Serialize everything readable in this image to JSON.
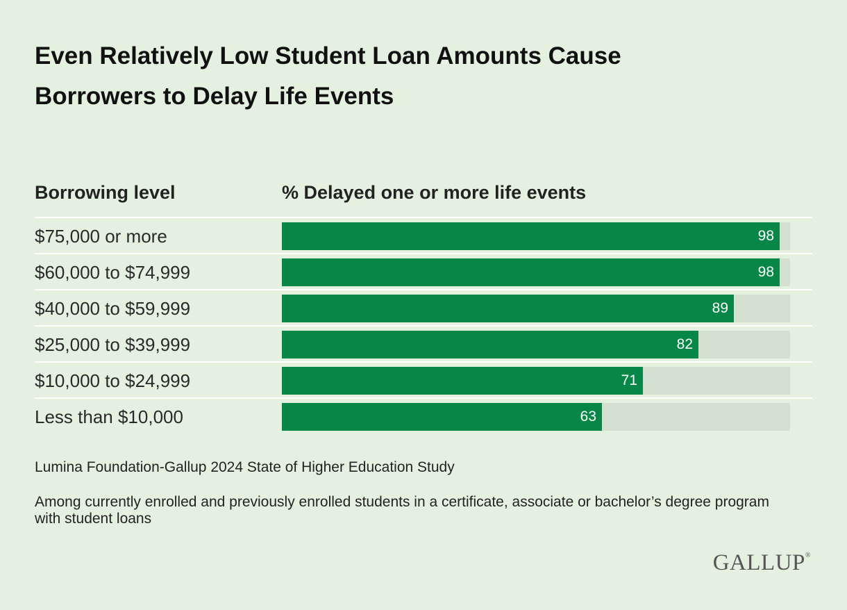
{
  "title": "Even Relatively Low Student Loan Amounts Cause Borrowers to Delay Life Events",
  "col_head_left": "Borrowing level",
  "col_head_right": "% Delayed one or more life events",
  "source": "Lumina Foundation-Gallup 2024 State of Higher Education Study",
  "note": "Among currently enrolled and previously enrolled students in a certificate, associate or bachelor’s degree program with student loans",
  "logo": "GALLUP",
  "colors": {
    "background": "#e4f1e1",
    "bar": "#078747",
    "track": "#d4e1d1"
  },
  "chart_data": {
    "type": "bar",
    "orientation": "horizontal",
    "categories": [
      "$75,000 or more",
      "$60,000 to $74,999",
      "$40,000 to $59,999",
      "$25,000 to $39,999",
      "$10,000 to $24,999",
      "Less than $10,000"
    ],
    "values": [
      98,
      98,
      89,
      82,
      71,
      63
    ],
    "xlim": [
      0,
      100
    ],
    "data_labels": true
  }
}
